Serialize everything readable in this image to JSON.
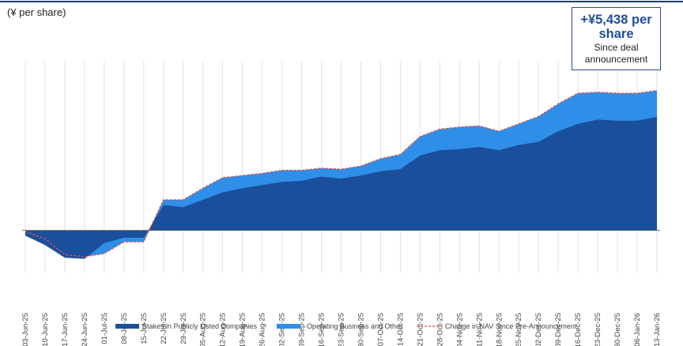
{
  "chart_data": {
    "type": "area",
    "y_unit_label": "(¥ per share)",
    "callout": {
      "headline": "+¥5,438 per share",
      "line2": "Since deal",
      "line3": "announcement"
    },
    "categories": [
      "03-Jun-25",
      "10-Jun-25",
      "17-Jun-25",
      "24-Jun-25",
      "01-Jul-25",
      "08-Jul-25",
      "15-Jul-25",
      "22-Jul-25",
      "29-Jul-25",
      "05-Aug-25",
      "12-Aug-25",
      "19-Aug-25",
      "26-Aug-25",
      "02-Sep-25",
      "09-Sep-25",
      "16-Sep-25",
      "23-Sep-25",
      "30-Sep-25",
      "07-Oct-25",
      "14-Oct-25",
      "21-Oct-25",
      "28-Oct-25",
      "04-Nov-25",
      "11-Nov-25",
      "18-Nov-25",
      "25-Nov-25",
      "02-Dec-25",
      "09-Dec-25",
      "16-Dec-25",
      "23-Dec-25",
      "30-Dec-25",
      "06-Jan-26",
      "13-Jan-26"
    ],
    "series": [
      {
        "name": "Stakes in Publicly Listed Companies",
        "color": "#1a4f9c",
        "kind": "stacked-area",
        "values": [
          -250,
          -700,
          -1300,
          -1350,
          -600,
          -350,
          -350,
          1200,
          1100,
          1450,
          1800,
          2000,
          2150,
          2300,
          2350,
          2550,
          2450,
          2600,
          2800,
          2900,
          3550,
          3800,
          3850,
          3950,
          3800,
          4050,
          4200,
          4700,
          5050,
          5250,
          5200,
          5200,
          5380
        ]
      },
      {
        "name": "Operating Business and Other",
        "color": "#2f8fe8",
        "kind": "stacked-area",
        "values": [
          200,
          300,
          150,
          100,
          -500,
          -200,
          -200,
          250,
          350,
          550,
          700,
          600,
          550,
          550,
          500,
          400,
          450,
          450,
          600,
          700,
          900,
          1000,
          1050,
          1000,
          900,
          1000,
          1200,
          1300,
          1450,
          1300,
          1300,
          1300,
          1250
        ]
      },
      {
        "name": "Change in NAV Since Pre-Announcement",
        "color": "#e0554a",
        "kind": "dashed-line",
        "values": [
          -50,
          -400,
          -1150,
          -1250,
          -1100,
          -550,
          -550,
          1450,
          1450,
          2000,
          2500,
          2600,
          2700,
          2850,
          2850,
          2950,
          2900,
          3050,
          3400,
          3600,
          4450,
          4800,
          4900,
          4950,
          4700,
          5050,
          5400,
          6000,
          6500,
          6550,
          6500,
          6500,
          6630
        ]
      }
    ],
    "ylim": [
      -2000,
      8000
    ],
    "grid": "vertical",
    "legend_position": "bottom"
  }
}
